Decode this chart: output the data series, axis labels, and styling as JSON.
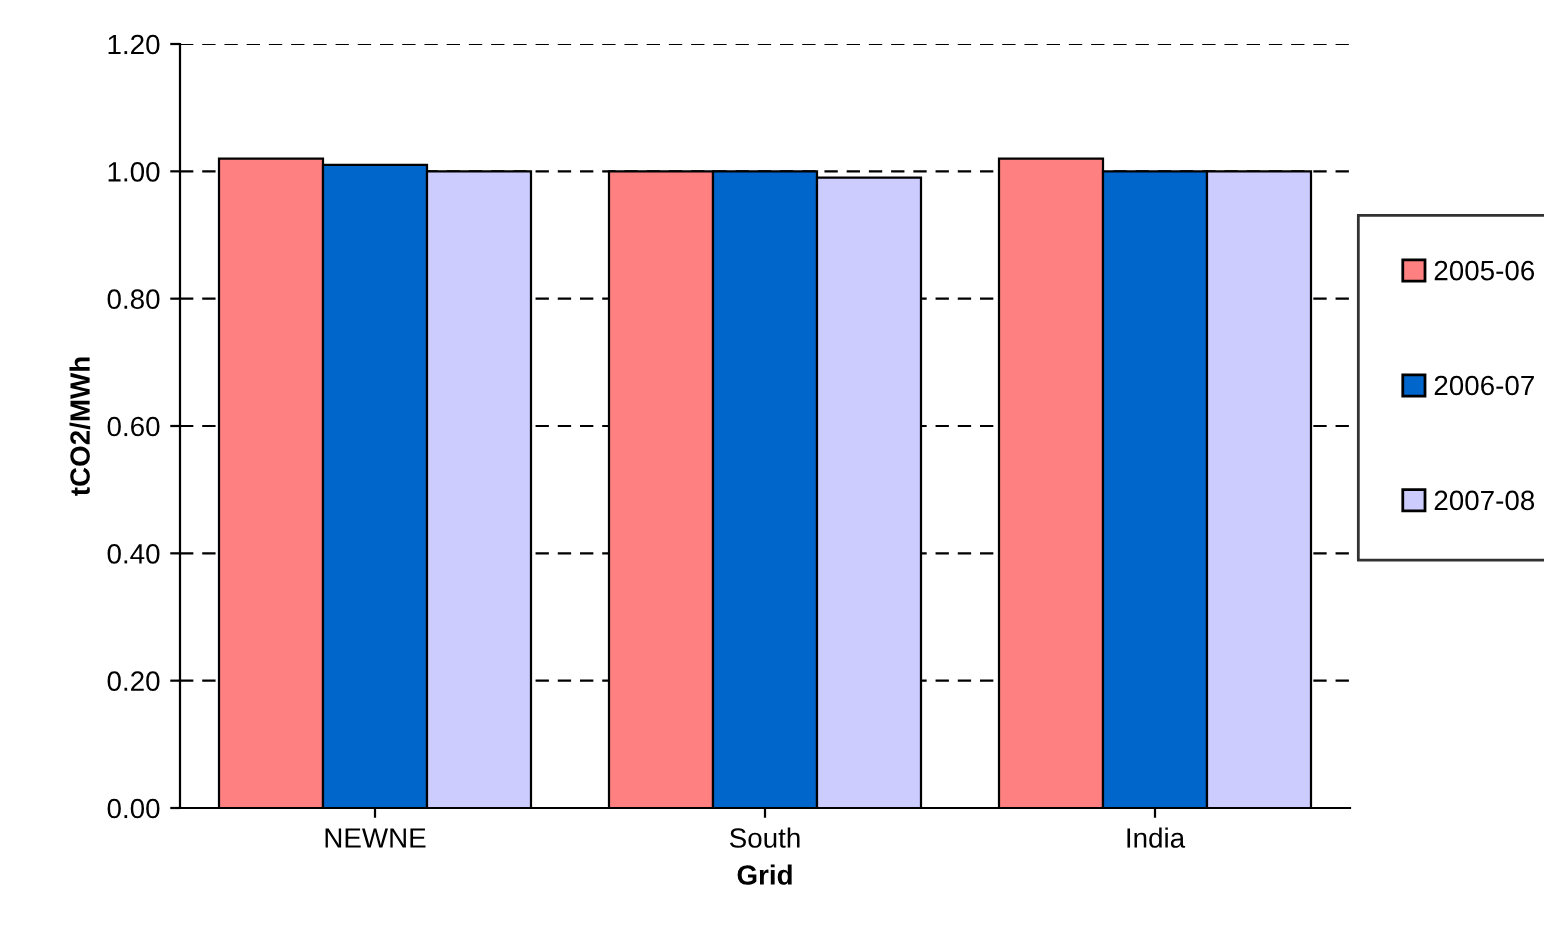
{
  "chart_data": {
    "type": "bar",
    "xlabel": "Grid",
    "ylabel": "tCO2/MWh",
    "categories": [
      "NEWNE",
      "South",
      "India"
    ],
    "series": [
      {
        "name": "2005-06",
        "color": "#ff8080",
        "values": [
          1.02,
          1.0,
          1.02
        ]
      },
      {
        "name": "2006-07",
        "color": "#0066cc",
        "values": [
          1.01,
          1.0,
          1.0
        ]
      },
      {
        "name": "2007-08",
        "color": "#ccccff",
        "values": [
          1.0,
          0.99,
          1.0
        ]
      }
    ],
    "ylim": [
      0,
      1.2
    ],
    "yticks": [
      {
        "value": 0,
        "label": "0.00"
      },
      {
        "value": 0.2,
        "label": "0.20"
      },
      {
        "value": 0.4,
        "label": "0.40"
      },
      {
        "value": 0.6,
        "label": "0.60"
      },
      {
        "value": 0.8,
        "label": "0.80"
      },
      {
        "value": 1.0,
        "label": "1.00"
      },
      {
        "value": 1.2,
        "label": "1.20"
      }
    ],
    "grid": "y",
    "legend": "right"
  }
}
